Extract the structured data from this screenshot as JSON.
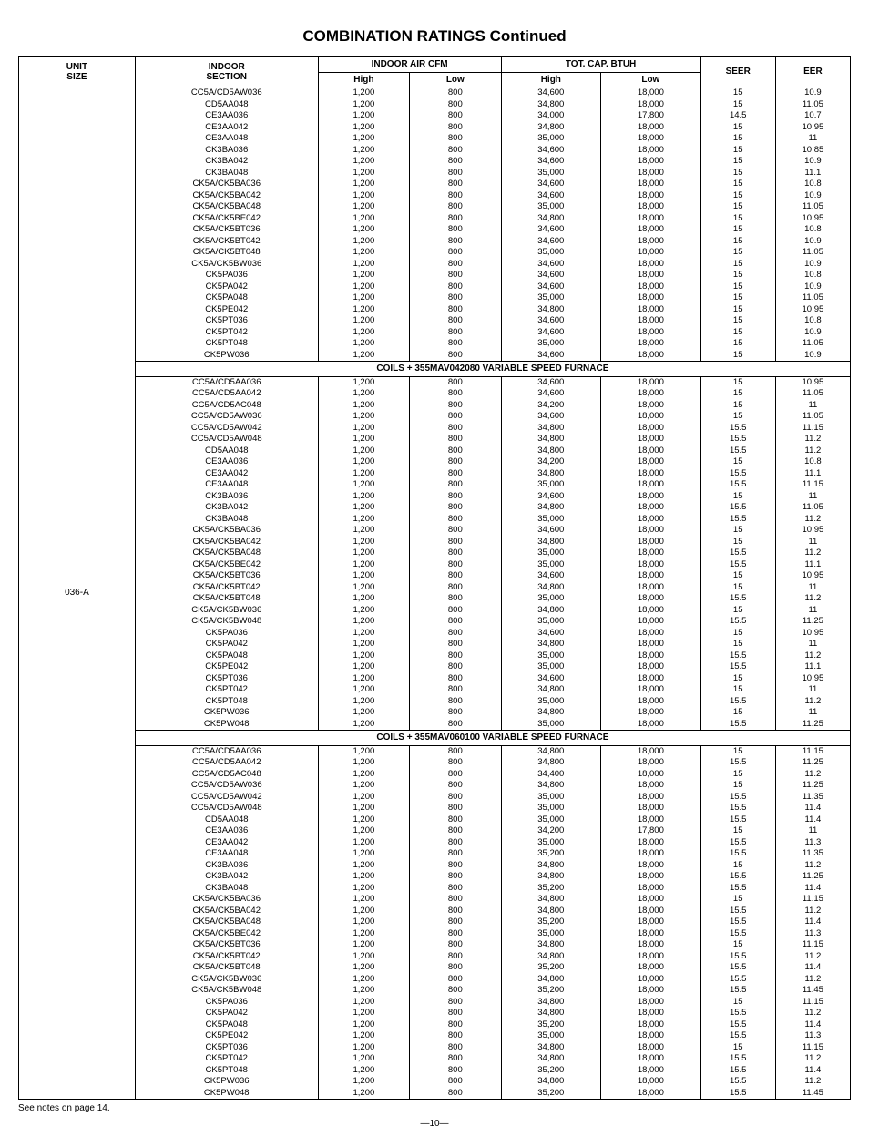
{
  "title": "COMBINATION RATINGS Continued",
  "headers": {
    "unit_size_l1": "UNIT",
    "unit_size_l2": "SIZE",
    "indoor_l1": "INDOOR",
    "indoor_l2": "SECTION",
    "cfm_group": "INDOOR AIR CFM",
    "cap_group": "TOT. CAP. BTUH",
    "high": "High",
    "low": "Low",
    "seer": "SEER",
    "eer": "EER"
  },
  "unit_size": "036-A",
  "groups": [
    {
      "subheader": null,
      "rows": [
        {
          "section": "CC5A/CD5AW036",
          "cfm_hi": "1,200",
          "cfm_lo": "800",
          "cap_hi": "34,600",
          "cap_lo": "18,000",
          "seer": "15",
          "eer": "10.9"
        },
        {
          "section": "CD5AA048",
          "cfm_hi": "1,200",
          "cfm_lo": "800",
          "cap_hi": "34,800",
          "cap_lo": "18,000",
          "seer": "15",
          "eer": "11.05"
        },
        {
          "section": "CE3AA036",
          "cfm_hi": "1,200",
          "cfm_lo": "800",
          "cap_hi": "34,000",
          "cap_lo": "17,800",
          "seer": "14.5",
          "eer": "10.7"
        },
        {
          "section": "CE3AA042",
          "cfm_hi": "1,200",
          "cfm_lo": "800",
          "cap_hi": "34,800",
          "cap_lo": "18,000",
          "seer": "15",
          "eer": "10.95"
        },
        {
          "section": "CE3AA048",
          "cfm_hi": "1,200",
          "cfm_lo": "800",
          "cap_hi": "35,000",
          "cap_lo": "18,000",
          "seer": "15",
          "eer": "11"
        },
        {
          "section": "CK3BA036",
          "cfm_hi": "1,200",
          "cfm_lo": "800",
          "cap_hi": "34,600",
          "cap_lo": "18,000",
          "seer": "15",
          "eer": "10.85"
        },
        {
          "section": "CK3BA042",
          "cfm_hi": "1,200",
          "cfm_lo": "800",
          "cap_hi": "34,600",
          "cap_lo": "18,000",
          "seer": "15",
          "eer": "10.9"
        },
        {
          "section": "CK3BA048",
          "cfm_hi": "1,200",
          "cfm_lo": "800",
          "cap_hi": "35,000",
          "cap_lo": "18,000",
          "seer": "15",
          "eer": "11.1"
        },
        {
          "section": "CK5A/CK5BA036",
          "cfm_hi": "1,200",
          "cfm_lo": "800",
          "cap_hi": "34,600",
          "cap_lo": "18,000",
          "seer": "15",
          "eer": "10.8"
        },
        {
          "section": "CK5A/CK5BA042",
          "cfm_hi": "1,200",
          "cfm_lo": "800",
          "cap_hi": "34,600",
          "cap_lo": "18,000",
          "seer": "15",
          "eer": "10.9"
        },
        {
          "section": "CK5A/CK5BA048",
          "cfm_hi": "1,200",
          "cfm_lo": "800",
          "cap_hi": "35,000",
          "cap_lo": "18,000",
          "seer": "15",
          "eer": "11.05"
        },
        {
          "section": "CK5A/CK5BE042",
          "cfm_hi": "1,200",
          "cfm_lo": "800",
          "cap_hi": "34,800",
          "cap_lo": "18,000",
          "seer": "15",
          "eer": "10.95"
        },
        {
          "section": "CK5A/CK5BT036",
          "cfm_hi": "1,200",
          "cfm_lo": "800",
          "cap_hi": "34,600",
          "cap_lo": "18,000",
          "seer": "15",
          "eer": "10.8"
        },
        {
          "section": "CK5A/CK5BT042",
          "cfm_hi": "1,200",
          "cfm_lo": "800",
          "cap_hi": "34,600",
          "cap_lo": "18,000",
          "seer": "15",
          "eer": "10.9"
        },
        {
          "section": "CK5A/CK5BT048",
          "cfm_hi": "1,200",
          "cfm_lo": "800",
          "cap_hi": "35,000",
          "cap_lo": "18,000",
          "seer": "15",
          "eer": "11.05"
        },
        {
          "section": "CK5A/CK5BW036",
          "cfm_hi": "1,200",
          "cfm_lo": "800",
          "cap_hi": "34,600",
          "cap_lo": "18,000",
          "seer": "15",
          "eer": "10.9"
        },
        {
          "section": "CK5PA036",
          "cfm_hi": "1,200",
          "cfm_lo": "800",
          "cap_hi": "34,600",
          "cap_lo": "18,000",
          "seer": "15",
          "eer": "10.8"
        },
        {
          "section": "CK5PA042",
          "cfm_hi": "1,200",
          "cfm_lo": "800",
          "cap_hi": "34,600",
          "cap_lo": "18,000",
          "seer": "15",
          "eer": "10.9"
        },
        {
          "section": "CK5PA048",
          "cfm_hi": "1,200",
          "cfm_lo": "800",
          "cap_hi": "35,000",
          "cap_lo": "18,000",
          "seer": "15",
          "eer": "11.05"
        },
        {
          "section": "CK5PE042",
          "cfm_hi": "1,200",
          "cfm_lo": "800",
          "cap_hi": "34,800",
          "cap_lo": "18,000",
          "seer": "15",
          "eer": "10.95"
        },
        {
          "section": "CK5PT036",
          "cfm_hi": "1,200",
          "cfm_lo": "800",
          "cap_hi": "34,600",
          "cap_lo": "18,000",
          "seer": "15",
          "eer": "10.8"
        },
        {
          "section": "CK5PT042",
          "cfm_hi": "1,200",
          "cfm_lo": "800",
          "cap_hi": "34,600",
          "cap_lo": "18,000",
          "seer": "15",
          "eer": "10.9"
        },
        {
          "section": "CK5PT048",
          "cfm_hi": "1,200",
          "cfm_lo": "800",
          "cap_hi": "35,000",
          "cap_lo": "18,000",
          "seer": "15",
          "eer": "11.05"
        },
        {
          "section": "CK5PW036",
          "cfm_hi": "1,200",
          "cfm_lo": "800",
          "cap_hi": "34,600",
          "cap_lo": "18,000",
          "seer": "15",
          "eer": "10.9"
        }
      ]
    },
    {
      "subheader": "COILS + 355MAV042080 VARIABLE SPEED FURNACE",
      "rows": [
        {
          "section": "CC5A/CD5AA036",
          "cfm_hi": "1,200",
          "cfm_lo": "800",
          "cap_hi": "34,600",
          "cap_lo": "18,000",
          "seer": "15",
          "eer": "10.95"
        },
        {
          "section": "CC5A/CD5AA042",
          "cfm_hi": "1,200",
          "cfm_lo": "800",
          "cap_hi": "34,600",
          "cap_lo": "18,000",
          "seer": "15",
          "eer": "11.05"
        },
        {
          "section": "CC5A/CD5AC048",
          "cfm_hi": "1,200",
          "cfm_lo": "800",
          "cap_hi": "34,200",
          "cap_lo": "18,000",
          "seer": "15",
          "eer": "11"
        },
        {
          "section": "CC5A/CD5AW036",
          "cfm_hi": "1,200",
          "cfm_lo": "800",
          "cap_hi": "34,600",
          "cap_lo": "18,000",
          "seer": "15",
          "eer": "11.05"
        },
        {
          "section": "CC5A/CD5AW042",
          "cfm_hi": "1,200",
          "cfm_lo": "800",
          "cap_hi": "34,800",
          "cap_lo": "18,000",
          "seer": "15.5",
          "eer": "11.15"
        },
        {
          "section": "CC5A/CD5AW048",
          "cfm_hi": "1,200",
          "cfm_lo": "800",
          "cap_hi": "34,800",
          "cap_lo": "18,000",
          "seer": "15.5",
          "eer": "11.2"
        },
        {
          "section": "CD5AA048",
          "cfm_hi": "1,200",
          "cfm_lo": "800",
          "cap_hi": "34,800",
          "cap_lo": "18,000",
          "seer": "15.5",
          "eer": "11.2"
        },
        {
          "section": "CE3AA036",
          "cfm_hi": "1,200",
          "cfm_lo": "800",
          "cap_hi": "34,200",
          "cap_lo": "18,000",
          "seer": "15",
          "eer": "10.8"
        },
        {
          "section": "CE3AA042",
          "cfm_hi": "1,200",
          "cfm_lo": "800",
          "cap_hi": "34,800",
          "cap_lo": "18,000",
          "seer": "15.5",
          "eer": "11.1"
        },
        {
          "section": "CE3AA048",
          "cfm_hi": "1,200",
          "cfm_lo": "800",
          "cap_hi": "35,000",
          "cap_lo": "18,000",
          "seer": "15.5",
          "eer": "11.15"
        },
        {
          "section": "CK3BA036",
          "cfm_hi": "1,200",
          "cfm_lo": "800",
          "cap_hi": "34,600",
          "cap_lo": "18,000",
          "seer": "15",
          "eer": "11"
        },
        {
          "section": "CK3BA042",
          "cfm_hi": "1,200",
          "cfm_lo": "800",
          "cap_hi": "34,800",
          "cap_lo": "18,000",
          "seer": "15.5",
          "eer": "11.05"
        },
        {
          "section": "CK3BA048",
          "cfm_hi": "1,200",
          "cfm_lo": "800",
          "cap_hi": "35,000",
          "cap_lo": "18,000",
          "seer": "15.5",
          "eer": "11.2"
        },
        {
          "section": "CK5A/CK5BA036",
          "cfm_hi": "1,200",
          "cfm_lo": "800",
          "cap_hi": "34,600",
          "cap_lo": "18,000",
          "seer": "15",
          "eer": "10.95"
        },
        {
          "section": "CK5A/CK5BA042",
          "cfm_hi": "1,200",
          "cfm_lo": "800",
          "cap_hi": "34,800",
          "cap_lo": "18,000",
          "seer": "15",
          "eer": "11"
        },
        {
          "section": "CK5A/CK5BA048",
          "cfm_hi": "1,200",
          "cfm_lo": "800",
          "cap_hi": "35,000",
          "cap_lo": "18,000",
          "seer": "15.5",
          "eer": "11.2"
        },
        {
          "section": "CK5A/CK5BE042",
          "cfm_hi": "1,200",
          "cfm_lo": "800",
          "cap_hi": "35,000",
          "cap_lo": "18,000",
          "seer": "15.5",
          "eer": "11.1"
        },
        {
          "section": "CK5A/CK5BT036",
          "cfm_hi": "1,200",
          "cfm_lo": "800",
          "cap_hi": "34,600",
          "cap_lo": "18,000",
          "seer": "15",
          "eer": "10.95"
        },
        {
          "section": "CK5A/CK5BT042",
          "cfm_hi": "1,200",
          "cfm_lo": "800",
          "cap_hi": "34,800",
          "cap_lo": "18,000",
          "seer": "15",
          "eer": "11"
        },
        {
          "section": "CK5A/CK5BT048",
          "cfm_hi": "1,200",
          "cfm_lo": "800",
          "cap_hi": "35,000",
          "cap_lo": "18,000",
          "seer": "15.5",
          "eer": "11.2"
        },
        {
          "section": "CK5A/CK5BW036",
          "cfm_hi": "1,200",
          "cfm_lo": "800",
          "cap_hi": "34,800",
          "cap_lo": "18,000",
          "seer": "15",
          "eer": "11"
        },
        {
          "section": "CK5A/CK5BW048",
          "cfm_hi": "1,200",
          "cfm_lo": "800",
          "cap_hi": "35,000",
          "cap_lo": "18,000",
          "seer": "15.5",
          "eer": "11.25"
        },
        {
          "section": "CK5PA036",
          "cfm_hi": "1,200",
          "cfm_lo": "800",
          "cap_hi": "34,600",
          "cap_lo": "18,000",
          "seer": "15",
          "eer": "10.95"
        },
        {
          "section": "CK5PA042",
          "cfm_hi": "1,200",
          "cfm_lo": "800",
          "cap_hi": "34,800",
          "cap_lo": "18,000",
          "seer": "15",
          "eer": "11"
        },
        {
          "section": "CK5PA048",
          "cfm_hi": "1,200",
          "cfm_lo": "800",
          "cap_hi": "35,000",
          "cap_lo": "18,000",
          "seer": "15.5",
          "eer": "11.2"
        },
        {
          "section": "CK5PE042",
          "cfm_hi": "1,200",
          "cfm_lo": "800",
          "cap_hi": "35,000",
          "cap_lo": "18,000",
          "seer": "15.5",
          "eer": "11.1"
        },
        {
          "section": "CK5PT036",
          "cfm_hi": "1,200",
          "cfm_lo": "800",
          "cap_hi": "34,600",
          "cap_lo": "18,000",
          "seer": "15",
          "eer": "10.95"
        },
        {
          "section": "CK5PT042",
          "cfm_hi": "1,200",
          "cfm_lo": "800",
          "cap_hi": "34,800",
          "cap_lo": "18,000",
          "seer": "15",
          "eer": "11"
        },
        {
          "section": "CK5PT048",
          "cfm_hi": "1,200",
          "cfm_lo": "800",
          "cap_hi": "35,000",
          "cap_lo": "18,000",
          "seer": "15.5",
          "eer": "11.2"
        },
        {
          "section": "CK5PW036",
          "cfm_hi": "1,200",
          "cfm_lo": "800",
          "cap_hi": "34,800",
          "cap_lo": "18,000",
          "seer": "15",
          "eer": "11"
        },
        {
          "section": "CK5PW048",
          "cfm_hi": "1,200",
          "cfm_lo": "800",
          "cap_hi": "35,000",
          "cap_lo": "18,000",
          "seer": "15.5",
          "eer": "11.25"
        }
      ]
    },
    {
      "subheader": "COILS + 355MAV060100 VARIABLE SPEED FURNACE",
      "rows": [
        {
          "section": "CC5A/CD5AA036",
          "cfm_hi": "1,200",
          "cfm_lo": "800",
          "cap_hi": "34,800",
          "cap_lo": "18,000",
          "seer": "15",
          "eer": "11.15"
        },
        {
          "section": "CC5A/CD5AA042",
          "cfm_hi": "1,200",
          "cfm_lo": "800",
          "cap_hi": "34,800",
          "cap_lo": "18,000",
          "seer": "15.5",
          "eer": "11.25"
        },
        {
          "section": "CC5A/CD5AC048",
          "cfm_hi": "1,200",
          "cfm_lo": "800",
          "cap_hi": "34,400",
          "cap_lo": "18,000",
          "seer": "15",
          "eer": "11.2"
        },
        {
          "section": "CC5A/CD5AW036",
          "cfm_hi": "1,200",
          "cfm_lo": "800",
          "cap_hi": "34,800",
          "cap_lo": "18,000",
          "seer": "15",
          "eer": "11.25"
        },
        {
          "section": "CC5A/CD5AW042",
          "cfm_hi": "1,200",
          "cfm_lo": "800",
          "cap_hi": "35,000",
          "cap_lo": "18,000",
          "seer": "15.5",
          "eer": "11.35"
        },
        {
          "section": "CC5A/CD5AW048",
          "cfm_hi": "1,200",
          "cfm_lo": "800",
          "cap_hi": "35,000",
          "cap_lo": "18,000",
          "seer": "15.5",
          "eer": "11.4"
        },
        {
          "section": "CD5AA048",
          "cfm_hi": "1,200",
          "cfm_lo": "800",
          "cap_hi": "35,000",
          "cap_lo": "18,000",
          "seer": "15.5",
          "eer": "11.4"
        },
        {
          "section": "CE3AA036",
          "cfm_hi": "1,200",
          "cfm_lo": "800",
          "cap_hi": "34,200",
          "cap_lo": "17,800",
          "seer": "15",
          "eer": "11"
        },
        {
          "section": "CE3AA042",
          "cfm_hi": "1,200",
          "cfm_lo": "800",
          "cap_hi": "35,000",
          "cap_lo": "18,000",
          "seer": "15.5",
          "eer": "11.3"
        },
        {
          "section": "CE3AA048",
          "cfm_hi": "1,200",
          "cfm_lo": "800",
          "cap_hi": "35,200",
          "cap_lo": "18,000",
          "seer": "15.5",
          "eer": "11.35"
        },
        {
          "section": "CK3BA036",
          "cfm_hi": "1,200",
          "cfm_lo": "800",
          "cap_hi": "34,800",
          "cap_lo": "18,000",
          "seer": "15",
          "eer": "11.2"
        },
        {
          "section": "CK3BA042",
          "cfm_hi": "1,200",
          "cfm_lo": "800",
          "cap_hi": "34,800",
          "cap_lo": "18,000",
          "seer": "15.5",
          "eer": "11.25"
        },
        {
          "section": "CK3BA048",
          "cfm_hi": "1,200",
          "cfm_lo": "800",
          "cap_hi": "35,200",
          "cap_lo": "18,000",
          "seer": "15.5",
          "eer": "11.4"
        },
        {
          "section": "CK5A/CK5BA036",
          "cfm_hi": "1,200",
          "cfm_lo": "800",
          "cap_hi": "34,800",
          "cap_lo": "18,000",
          "seer": "15",
          "eer": "11.15"
        },
        {
          "section": "CK5A/CK5BA042",
          "cfm_hi": "1,200",
          "cfm_lo": "800",
          "cap_hi": "34,800",
          "cap_lo": "18,000",
          "seer": "15.5",
          "eer": "11.2"
        },
        {
          "section": "CK5A/CK5BA048",
          "cfm_hi": "1,200",
          "cfm_lo": "800",
          "cap_hi": "35,200",
          "cap_lo": "18,000",
          "seer": "15.5",
          "eer": "11.4"
        },
        {
          "section": "CK5A/CK5BE042",
          "cfm_hi": "1,200",
          "cfm_lo": "800",
          "cap_hi": "35,000",
          "cap_lo": "18,000",
          "seer": "15.5",
          "eer": "11.3"
        },
        {
          "section": "CK5A/CK5BT036",
          "cfm_hi": "1,200",
          "cfm_lo": "800",
          "cap_hi": "34,800",
          "cap_lo": "18,000",
          "seer": "15",
          "eer": "11.15"
        },
        {
          "section": "CK5A/CK5BT042",
          "cfm_hi": "1,200",
          "cfm_lo": "800",
          "cap_hi": "34,800",
          "cap_lo": "18,000",
          "seer": "15.5",
          "eer": "11.2"
        },
        {
          "section": "CK5A/CK5BT048",
          "cfm_hi": "1,200",
          "cfm_lo": "800",
          "cap_hi": "35,200",
          "cap_lo": "18,000",
          "seer": "15.5",
          "eer": "11.4"
        },
        {
          "section": "CK5A/CK5BW036",
          "cfm_hi": "1,200",
          "cfm_lo": "800",
          "cap_hi": "34,800",
          "cap_lo": "18,000",
          "seer": "15.5",
          "eer": "11.2"
        },
        {
          "section": "CK5A/CK5BW048",
          "cfm_hi": "1,200",
          "cfm_lo": "800",
          "cap_hi": "35,200",
          "cap_lo": "18,000",
          "seer": "15.5",
          "eer": "11.45"
        },
        {
          "section": "CK5PA036",
          "cfm_hi": "1,200",
          "cfm_lo": "800",
          "cap_hi": "34,800",
          "cap_lo": "18,000",
          "seer": "15",
          "eer": "11.15"
        },
        {
          "section": "CK5PA042",
          "cfm_hi": "1,200",
          "cfm_lo": "800",
          "cap_hi": "34,800",
          "cap_lo": "18,000",
          "seer": "15.5",
          "eer": "11.2"
        },
        {
          "section": "CK5PA048",
          "cfm_hi": "1,200",
          "cfm_lo": "800",
          "cap_hi": "35,200",
          "cap_lo": "18,000",
          "seer": "15.5",
          "eer": "11.4"
        },
        {
          "section": "CK5PE042",
          "cfm_hi": "1,200",
          "cfm_lo": "800",
          "cap_hi": "35,000",
          "cap_lo": "18,000",
          "seer": "15.5",
          "eer": "11.3"
        },
        {
          "section": "CK5PT036",
          "cfm_hi": "1,200",
          "cfm_lo": "800",
          "cap_hi": "34,800",
          "cap_lo": "18,000",
          "seer": "15",
          "eer": "11.15"
        },
        {
          "section": "CK5PT042",
          "cfm_hi": "1,200",
          "cfm_lo": "800",
          "cap_hi": "34,800",
          "cap_lo": "18,000",
          "seer": "15.5",
          "eer": "11.2"
        },
        {
          "section": "CK5PT048",
          "cfm_hi": "1,200",
          "cfm_lo": "800",
          "cap_hi": "35,200",
          "cap_lo": "18,000",
          "seer": "15.5",
          "eer": "11.4"
        },
        {
          "section": "CK5PW036",
          "cfm_hi": "1,200",
          "cfm_lo": "800",
          "cap_hi": "34,800",
          "cap_lo": "18,000",
          "seer": "15.5",
          "eer": "11.2"
        },
        {
          "section": "CK5PW048",
          "cfm_hi": "1,200",
          "cfm_lo": "800",
          "cap_hi": "35,200",
          "cap_lo": "18,000",
          "seer": "15.5",
          "eer": "11.45"
        }
      ]
    }
  ],
  "footer_note": "See notes on page 14.",
  "page_num": "—10—"
}
